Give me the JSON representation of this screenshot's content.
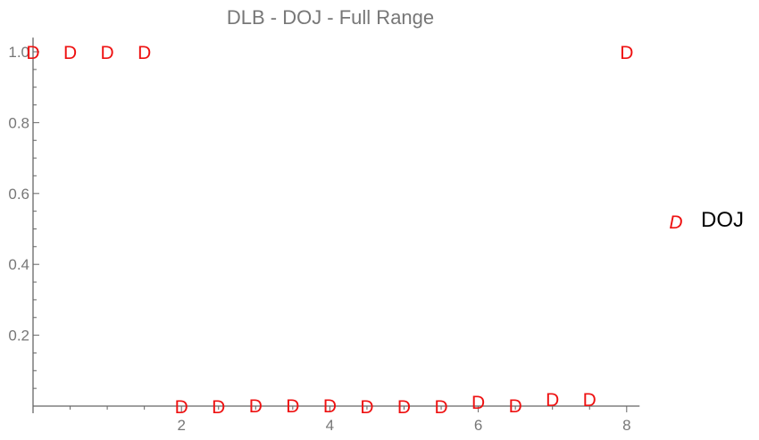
{
  "chart_data": {
    "type": "scatter",
    "title": "DLB - DOJ - Full Range",
    "xlabel": "",
    "ylabel": "",
    "xlim": [
      0,
      8.15
    ],
    "ylim": [
      0,
      1.04
    ],
    "x_ticks": [
      2,
      4,
      6,
      8
    ],
    "y_ticks": [
      0.2,
      0.4,
      0.6,
      0.8,
      1.0
    ],
    "y_tick_labels": [
      "0.2",
      "0.4",
      "0.6",
      "0.8",
      "1.0"
    ],
    "x_tick_labels": [
      "2",
      "4",
      "6",
      "8"
    ],
    "grid": false,
    "legend_position": "right",
    "series": [
      {
        "name": "DOJ",
        "marker": "D",
        "color": "#ee1111",
        "points": [
          {
            "x": 0.0,
            "y": 1.0
          },
          {
            "x": 0.5,
            "y": 1.0
          },
          {
            "x": 1.0,
            "y": 1.0
          },
          {
            "x": 1.5,
            "y": 1.0
          },
          {
            "x": 2.0,
            "y": 0.0
          },
          {
            "x": 2.5,
            "y": 0.0
          },
          {
            "x": 3.0,
            "y": 0.003
          },
          {
            "x": 3.5,
            "y": 0.003
          },
          {
            "x": 4.0,
            "y": 0.002
          },
          {
            "x": 4.5,
            "y": 0.0
          },
          {
            "x": 5.0,
            "y": 0.0
          },
          {
            "x": 5.5,
            "y": 0.0
          },
          {
            "x": 6.0,
            "y": 0.013
          },
          {
            "x": 6.5,
            "y": 0.003
          },
          {
            "x": 7.0,
            "y": 0.02
          },
          {
            "x": 7.5,
            "y": 0.02
          },
          {
            "x": 8.0,
            "y": 1.0
          }
        ]
      }
    ]
  }
}
